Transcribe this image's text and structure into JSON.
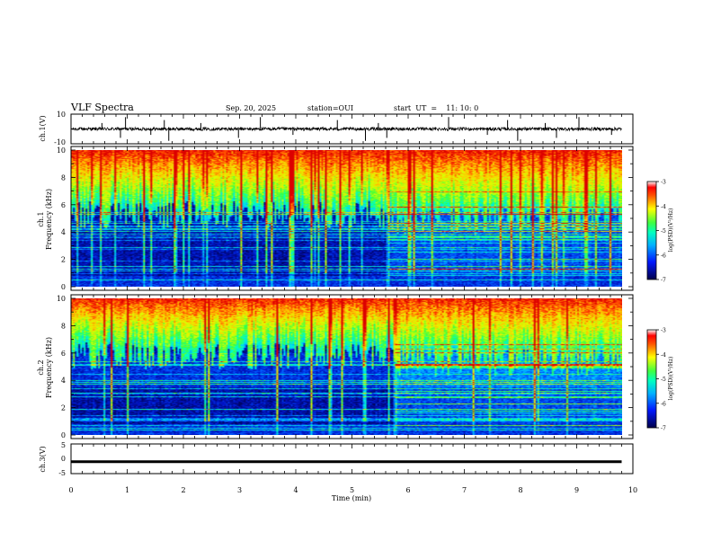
{
  "header": {
    "title": "VLF Spectra",
    "date": "Sep. 20, 2025",
    "station": "station=OUI",
    "start": "start  UT  =    11: 10: 0"
  },
  "chart_data": [
    {
      "type": "line",
      "id": "ch1-waveform",
      "ylabel": "ch.1(V)",
      "ylim": [
        -10,
        10
      ],
      "yticks": [
        10,
        -10
      ],
      "xlim": [
        0,
        10
      ],
      "baseline": 0,
      "spikes_min": [
        0.55,
        0.88,
        0.97,
        1.42,
        1.66,
        1.74,
        2.31,
        2.98,
        3.37,
        3.95,
        4.74,
        5.24,
        5.47,
        5.62,
        6.72,
        7.41,
        7.77,
        7.95,
        8.44,
        8.64,
        9.04,
        9.62
      ]
    },
    {
      "type": "heatmap",
      "id": "ch1-spectrogram",
      "ylabel": "ch.1",
      "ylabel2": "Frequency (kHz)",
      "ylim": [
        0,
        10
      ],
      "yticks": [
        0,
        2,
        4,
        6,
        8,
        10
      ],
      "xlim": [
        0,
        9.8
      ],
      "regime_change_min": 5.65
    },
    {
      "type": "heatmap",
      "id": "ch2-spectrogram",
      "ylabel": "ch.2",
      "ylabel2": "Frequency (kHz)",
      "ylim": [
        0,
        10
      ],
      "yticks": [
        0,
        2,
        4,
        6,
        8,
        10
      ],
      "xlim": [
        0,
        9.8
      ],
      "regime_change_min": 5.75
    },
    {
      "type": "line",
      "id": "ch3-waveform",
      "ylabel": "ch.3(V)",
      "ylim": [
        -5,
        5
      ],
      "yticks": [
        5,
        0,
        -5
      ],
      "xlim": [
        0,
        10
      ],
      "baseline": -1
    }
  ],
  "x_axis": {
    "label": "Time (min)",
    "ticks": [
      "0",
      "1",
      "2",
      "3",
      "4",
      "5",
      "6",
      "7",
      "8",
      "9",
      "10"
    ]
  },
  "colorbar": {
    "label": "log(PSD)(V²/Hz)",
    "range": [
      -7,
      -3
    ],
    "ticks": [
      "-3",
      "-4",
      "-5",
      "-6",
      "-7"
    ]
  },
  "colors": {
    "low": "#00004a",
    "mid_low": "#1060ff",
    "mid": "#00e0e0",
    "mid_high": "#40ff40",
    "high": "#ffe000",
    "max": "#ff0000",
    "line": "#000000"
  }
}
